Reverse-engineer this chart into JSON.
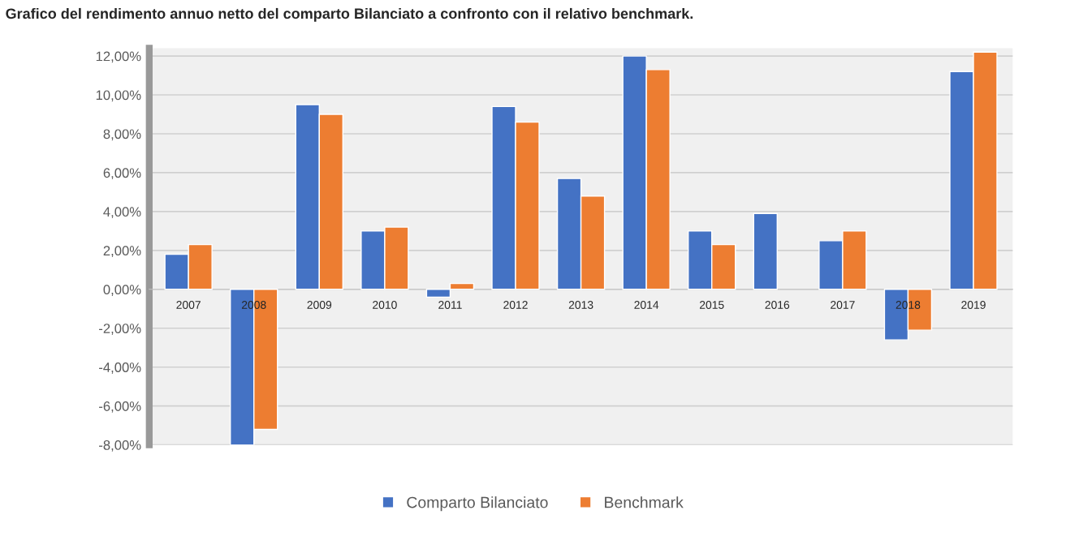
{
  "chart_data": {
    "type": "bar",
    "title": "Grafico del rendimento annuo netto del comparto Bilanciato a confronto con il relativo benchmark.",
    "categories": [
      "2007",
      "2008",
      "2009",
      "2010",
      "2011",
      "2012",
      "2013",
      "2014",
      "2015",
      "2016",
      "2017",
      "2018",
      "2019"
    ],
    "series": [
      {
        "name": "Comparto Bilanciato",
        "color": "#4472c4",
        "values": [
          1.8,
          -8.0,
          9.5,
          3.0,
          -0.4,
          9.4,
          5.7,
          12.0,
          3.0,
          3.9,
          2.5,
          -2.6,
          11.2
        ]
      },
      {
        "name": "Benchmark",
        "color": "#ed7d31",
        "values": [
          2.3,
          -7.2,
          9.0,
          3.2,
          0.3,
          8.6,
          4.8,
          11.3,
          2.3,
          null,
          3.0,
          -2.1,
          12.2
        ]
      }
    ],
    "ylim": [
      -8,
      12.4
    ],
    "yticks": [
      {
        "value": -8,
        "label": "-8,00%"
      },
      {
        "value": -6,
        "label": "-6,00%"
      },
      {
        "value": -4,
        "label": "-4,00%"
      },
      {
        "value": -2,
        "label": "-2,00%"
      },
      {
        "value": 0,
        "label": "0,00%"
      },
      {
        "value": 2,
        "label": "2,00%"
      },
      {
        "value": 4,
        "label": "4,00%"
      },
      {
        "value": 6,
        "label": "6,00%"
      },
      {
        "value": 8,
        "label": "8,00%"
      },
      {
        "value": 10,
        "label": "10,00%"
      },
      {
        "value": 12,
        "label": "12,00%"
      }
    ],
    "grid": "y",
    "legend": "bottom"
  }
}
